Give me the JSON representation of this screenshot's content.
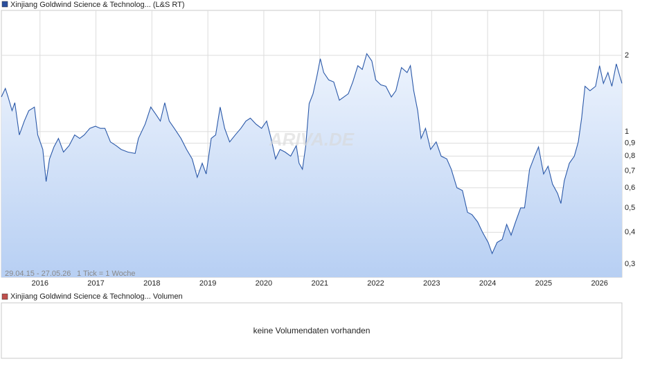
{
  "chart_data": {
    "type": "line",
    "title": "Xinjiang Goldwind Science & Technolog... (L&S RT)",
    "volume_title": "Xinjiang Goldwind Science & Technolog... Volumen",
    "volume_note": "keine Volumendaten vorhanden",
    "annotations": [
      "29.04.15 - 27.05.26",
      "1 Tick = 1 Woche"
    ],
    "watermark": "ARIVA.DE",
    "log_scale": true,
    "grid": true,
    "color": "#2a58a8",
    "legend_color": "#2a4f9e",
    "volume_color": "#c0504d",
    "xlim": [
      2015.31,
      2026.4
    ],
    "xticks": [
      2016,
      2017,
      2018,
      2019,
      2020,
      2021,
      2022,
      2023,
      2024,
      2025,
      2026
    ],
    "ylim": [
      0.266,
      3.01
    ],
    "yticks": [
      {
        "value": 0.3,
        "label": "0,3"
      },
      {
        "value": 0.4,
        "label": "0,4"
      },
      {
        "value": 0.5,
        "label": "0,5"
      },
      {
        "value": 0.6,
        "label": "0,6"
      },
      {
        "value": 0.7,
        "label": "0,7"
      },
      {
        "value": 0.8,
        "label": "0,8"
      },
      {
        "value": 0.9,
        "label": "0,9"
      },
      1,
      2
    ],
    "x": [
      2015.31,
      2015.38,
      2015.43,
      2015.5,
      2015.55,
      2015.63,
      2015.72,
      2015.8,
      2015.9,
      2015.96,
      2016.05,
      2016.11,
      2016.17,
      2016.25,
      2016.33,
      2016.42,
      2016.52,
      2016.62,
      2016.71,
      2016.79,
      2016.89,
      2016.99,
      2017.08,
      2017.16,
      2017.26,
      2017.36,
      2017.45,
      2017.57,
      2017.7,
      2017.76,
      2017.88,
      2017.98,
      2018.07,
      2018.15,
      2018.23,
      2018.31,
      2018.4,
      2018.52,
      2018.62,
      2018.72,
      2018.81,
      2018.9,
      2018.97,
      2019.06,
      2019.14,
      2019.22,
      2019.3,
      2019.39,
      2019.49,
      2019.59,
      2019.68,
      2019.76,
      2019.86,
      2019.96,
      2020.05,
      2020.13,
      2020.21,
      2020.29,
      2020.38,
      2020.48,
      2020.58,
      2020.63,
      2020.69,
      2020.75,
      2020.81,
      2020.88,
      2020.95,
      2021.01,
      2021.07,
      2021.16,
      2021.25,
      2021.35,
      2021.43,
      2021.51,
      2021.59,
      2021.68,
      2021.76,
      2021.84,
      2021.93,
      2022.0,
      2022.09,
      2022.18,
      2022.28,
      2022.36,
      2022.46,
      2022.56,
      2022.62,
      2022.68,
      2022.75,
      2022.81,
      2022.89,
      2022.98,
      2023.08,
      2023.17,
      2023.27,
      2023.35,
      2023.45,
      2023.55,
      2023.64,
      2023.72,
      2023.82,
      2023.91,
      2024.01,
      2024.08,
      2024.17,
      2024.26,
      2024.34,
      2024.42,
      2024.5,
      2024.59,
      2024.66,
      2024.75,
      2024.84,
      2024.91,
      2025.0,
      2025.08,
      2025.16,
      2025.25,
      2025.31,
      2025.37,
      2025.46,
      2025.55,
      2025.62,
      2025.68,
      2025.74,
      2025.83,
      2025.93,
      2026.0,
      2026.07,
      2026.15,
      2026.22,
      2026.3,
      2026.36,
      2026.4
    ],
    "values": [
      1.37,
      1.48,
      1.37,
      1.21,
      1.3,
      0.97,
      1.1,
      1.21,
      1.25,
      0.97,
      0.85,
      0.635,
      0.78,
      0.87,
      0.94,
      0.83,
      0.88,
      0.97,
      0.94,
      0.97,
      1.03,
      1.05,
      1.03,
      1.03,
      0.91,
      0.88,
      0.85,
      0.83,
      0.82,
      0.94,
      1.07,
      1.25,
      1.17,
      1.1,
      1.3,
      1.1,
      1.03,
      0.94,
      0.85,
      0.78,
      0.66,
      0.75,
      0.68,
      0.94,
      0.97,
      1.25,
      1.03,
      0.91,
      0.97,
      1.03,
      1.1,
      1.13,
      1.07,
      1.03,
      1.1,
      0.94,
      0.78,
      0.85,
      0.83,
      0.8,
      0.88,
      0.75,
      0.71,
      0.88,
      1.29,
      1.41,
      1.66,
      1.94,
      1.71,
      1.6,
      1.57,
      1.33,
      1.37,
      1.41,
      1.57,
      1.82,
      1.76,
      2.03,
      1.9,
      1.6,
      1.53,
      1.51,
      1.37,
      1.45,
      1.79,
      1.71,
      1.82,
      1.45,
      1.21,
      0.94,
      1.03,
      0.85,
      0.91,
      0.8,
      0.78,
      0.71,
      0.6,
      0.585,
      0.48,
      0.47,
      0.44,
      0.4,
      0.365,
      0.33,
      0.365,
      0.375,
      0.43,
      0.39,
      0.44,
      0.5,
      0.5,
      0.71,
      0.8,
      0.87,
      0.68,
      0.73,
      0.62,
      0.57,
      0.52,
      0.64,
      0.75,
      0.8,
      0.91,
      1.13,
      1.51,
      1.45,
      1.51,
      1.82,
      1.55,
      1.71,
      1.51,
      1.85,
      1.66,
      1.55
    ]
  }
}
